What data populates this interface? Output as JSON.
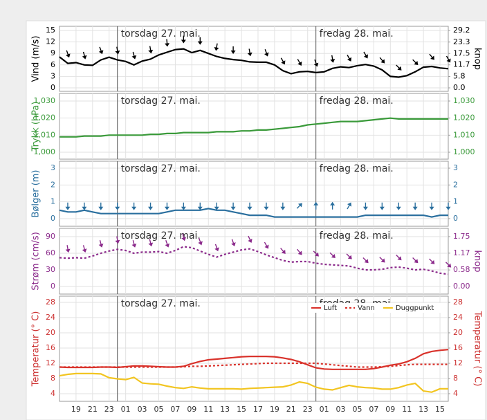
{
  "chart_data": [
    {
      "type": "line",
      "ylabel": "Vind (m/s)",
      "y2label": "knop",
      "color": "#000000",
      "day_labels": [
        "torsdag 27. mai.",
        "fredag 28. mai."
      ],
      "ylim": [
        0,
        15
      ],
      "yticks": [
        0,
        3,
        6,
        9,
        12,
        15
      ],
      "y2lim": [
        0,
        29.2
      ],
      "y2ticks": [
        {
          "value": 0,
          "label": "0.0"
        },
        5.8,
        11.7,
        17.5,
        23.3,
        29.2
      ],
      "grid": true,
      "series": [
        {
          "color": "#000000",
          "style": "solid",
          "values": [
            8.1,
            6.4,
            6.6,
            6.0,
            5.9,
            7.3,
            8.0,
            7.3,
            6.9,
            6.0,
            7.0,
            7.5,
            8.6,
            9.3,
            10.0,
            10.2,
            9.2,
            9.8,
            9.0,
            8.2,
            7.7,
            7.4,
            7.2,
            6.8,
            6.7,
            6.7,
            6.0,
            4.5,
            3.7,
            4.2,
            4.3,
            4.0,
            4.2,
            5.1,
            5.5,
            5.3,
            5.8,
            6.1,
            5.7,
            4.7,
            3.0,
            2.8,
            3.2,
            4.2,
            5.4,
            5.6,
            5.2,
            5.0
          ],
          "directions": [
            null,
            160,
            null,
            165,
            null,
            160,
            null,
            170,
            null,
            165,
            null,
            170,
            null,
            175,
            null,
            180,
            null,
            180,
            null,
            190,
            null,
            180,
            null,
            170,
            null,
            160,
            null,
            150,
            null,
            150,
            null,
            160,
            null,
            170,
            null,
            150,
            null,
            150,
            null,
            140,
            null,
            135,
            null,
            135,
            null,
            140,
            null,
            150
          ]
        }
      ]
    },
    {
      "type": "line",
      "ylabel": "Trykk (hPa)",
      "color": "#3a9a3a",
      "ylim": [
        1000,
        1030
      ],
      "yticks": [
        {
          "value": 1000,
          "label": "1,000"
        },
        {
          "value": 1010,
          "label": "1,010"
        },
        {
          "value": 1020,
          "label": "1,020"
        },
        {
          "value": 1030,
          "label": "1,030"
        }
      ],
      "y2lim": [
        1000,
        1030
      ],
      "y2ticks": [
        {
          "value": 1000,
          "label": "1,000"
        },
        {
          "value": 1010,
          "label": "1,010"
        },
        {
          "value": 1020,
          "label": "1,020"
        },
        {
          "value": 1030,
          "label": "1,030"
        }
      ],
      "grid": true,
      "series": [
        {
          "color": "#3a9a3a",
          "style": "solid",
          "values": [
            1009,
            1009,
            1009,
            1009.5,
            1009.5,
            1009.5,
            1010,
            1010,
            1010,
            1010,
            1010,
            1010.5,
            1010.5,
            1011,
            1011,
            1011.5,
            1011.5,
            1011.5,
            1011.5,
            1012,
            1012,
            1012,
            1012.5,
            1012.5,
            1013,
            1013,
            1013.5,
            1014,
            1014.5,
            1015,
            1016,
            1016.5,
            1017,
            1017.5,
            1018,
            1018,
            1018,
            1018.5,
            1019,
            1019.5,
            1020,
            1019.5,
            1019.5,
            1019.5,
            1019.5,
            1019.5,
            1019.5,
            1019.5
          ]
        }
      ]
    },
    {
      "type": "line",
      "ylabel": "Bølger (m)",
      "color": "#2a6f9e",
      "ylim": [
        0,
        3
      ],
      "yticks": [
        0,
        1,
        2,
        3
      ],
      "y2lim": [
        0,
        3
      ],
      "y2ticks": [
        0,
        1,
        2,
        3
      ],
      "grid": true,
      "series": [
        {
          "color": "#2a6f9e",
          "style": "solid",
          "values": [
            0.5,
            0.4,
            0.4,
            0.5,
            0.4,
            0.3,
            0.3,
            0.3,
            0.3,
            0.3,
            0.3,
            0.3,
            0.3,
            0.4,
            0.5,
            0.5,
            0.5,
            0.5,
            0.6,
            0.5,
            0.5,
            0.4,
            0.3,
            0.2,
            0.2,
            0.2,
            0.1,
            0.1,
            0.1,
            0.1,
            0.1,
            0.1,
            0.1,
            0.1,
            0.1,
            0.1,
            0.1,
            0.2,
            0.2,
            0.2,
            0.2,
            0.2,
            0.2,
            0.2,
            0.2,
            0.1,
            0.2,
            0.2
          ],
          "directions": [
            null,
            180,
            null,
            180,
            null,
            180,
            null,
            180,
            null,
            180,
            null,
            180,
            null,
            180,
            null,
            180,
            null,
            180,
            null,
            180,
            null,
            180,
            null,
            180,
            null,
            180,
            null,
            180,
            null,
            45,
            null,
            0,
            null,
            0,
            null,
            30,
            null,
            180,
            null,
            180,
            null,
            180,
            null,
            180,
            null,
            180,
            null,
            180
          ]
        }
      ]
    },
    {
      "type": "line",
      "ylabel": "Strøm (cm/s)",
      "y2label": "knop",
      "color": "#8b2a8b",
      "ylim": [
        0,
        90
      ],
      "yticks": [
        0,
        30,
        60,
        90
      ],
      "y2lim": [
        0,
        1.75
      ],
      "y2ticks": [
        {
          "value": 0,
          "label": "0.00"
        },
        0.58,
        1.17,
        1.75
      ],
      "grid": true,
      "series": [
        {
          "color": "#8b2a8b",
          "style": "dotted",
          "values": [
            52,
            51,
            52,
            51,
            55,
            60,
            64,
            67,
            65,
            60,
            62,
            62,
            63,
            60,
            65,
            72,
            70,
            64,
            58,
            53,
            58,
            62,
            66,
            68,
            63,
            57,
            52,
            47,
            44,
            45,
            45,
            42,
            40,
            39,
            38,
            37,
            33,
            30,
            30,
            31,
            34,
            35,
            33,
            30,
            31,
            28,
            24,
            22
          ],
          "directions": [
            null,
            170,
            null,
            165,
            null,
            165,
            null,
            170,
            null,
            165,
            null,
            165,
            null,
            160,
            null,
            165,
            null,
            160,
            null,
            160,
            null,
            160,
            null,
            155,
            null,
            150,
            null,
            140,
            null,
            140,
            null,
            135,
            null,
            135,
            null,
            135,
            null,
            135,
            null,
            135,
            null,
            135,
            null,
            135,
            null,
            135,
            null,
            135
          ]
        }
      ]
    },
    {
      "type": "line",
      "ylabel": "Temperatur (° C)",
      "y2label": "Temperatur (° C)",
      "color": "#cc2f2f",
      "categories": [
        null,
        null,
        "19",
        null,
        "21",
        null,
        "23",
        null,
        "01",
        null,
        "03",
        null,
        "05",
        null,
        "07",
        null,
        "09",
        null,
        "11",
        null,
        "13",
        null,
        "15",
        null,
        "17",
        null,
        "19",
        null,
        "21",
        null,
        "23",
        null,
        "01",
        null,
        "03",
        null,
        "05",
        null,
        "07",
        null,
        "09",
        null,
        "11",
        null,
        "13",
        null,
        "15",
        null
      ],
      "ylim": [
        4,
        28
      ],
      "yticks": [
        4,
        8,
        12,
        16,
        20,
        24,
        28
      ],
      "y2lim": [
        4,
        28
      ],
      "y2ticks": [
        4,
        8,
        12,
        16,
        20,
        24,
        28
      ],
      "grid": true,
      "legend": "upper right",
      "series": [
        {
          "name": "Luft",
          "color": "#d9322b",
          "style": "solid",
          "values": [
            11,
            10.9,
            10.9,
            10.9,
            10.9,
            11,
            11,
            10.9,
            11.1,
            11.3,
            11.3,
            11.2,
            11.1,
            11,
            11,
            11.2,
            11.9,
            12.5,
            12.9,
            13.1,
            13.3,
            13.5,
            13.7,
            13.8,
            13.8,
            13.8,
            13.7,
            13.4,
            13,
            12.4,
            11.6,
            10.8,
            10.5,
            10.4,
            10.4,
            10.4,
            10.4,
            10.4,
            10.6,
            11,
            11.5,
            11.8,
            12.4,
            13.3,
            14.5,
            15.1,
            15.4,
            15.6
          ]
        },
        {
          "name": "Vann",
          "color": "#d9322b",
          "style": "dotted",
          "values": [
            11,
            11,
            11,
            11,
            11,
            11,
            11,
            11,
            11,
            11,
            11,
            11,
            11,
            11,
            11,
            11.1,
            11.2,
            11.2,
            11.3,
            11.4,
            11.5,
            11.6,
            11.7,
            11.8,
            11.9,
            12,
            12,
            12,
            12,
            12,
            12,
            12,
            11.8,
            11.6,
            11.4,
            11.2,
            11,
            11,
            11,
            11.1,
            11.2,
            11.4,
            11.6,
            11.7,
            11.7,
            11.7,
            11.7,
            11.7
          ]
        },
        {
          "name": "Duggpunkt",
          "color": "#f2c521",
          "style": "solid",
          "values": [
            8.7,
            9.1,
            9.3,
            9.3,
            9.3,
            9.2,
            8.2,
            7.9,
            7.7,
            8.3,
            6.8,
            6.6,
            6.5,
            6,
            5.6,
            5.4,
            5.8,
            5.5,
            5.3,
            5.3,
            5.3,
            5.3,
            5.2,
            5.4,
            5.5,
            5.6,
            5.7,
            5.8,
            6.3,
            7.1,
            6.7,
            5.7,
            5.2,
            5,
            5.6,
            6.2,
            5.8,
            5.6,
            5.5,
            5.2,
            5.2,
            5.6,
            6.3,
            6.7,
            4.7,
            4.4,
            5.3,
            5.3
          ]
        }
      ]
    }
  ]
}
